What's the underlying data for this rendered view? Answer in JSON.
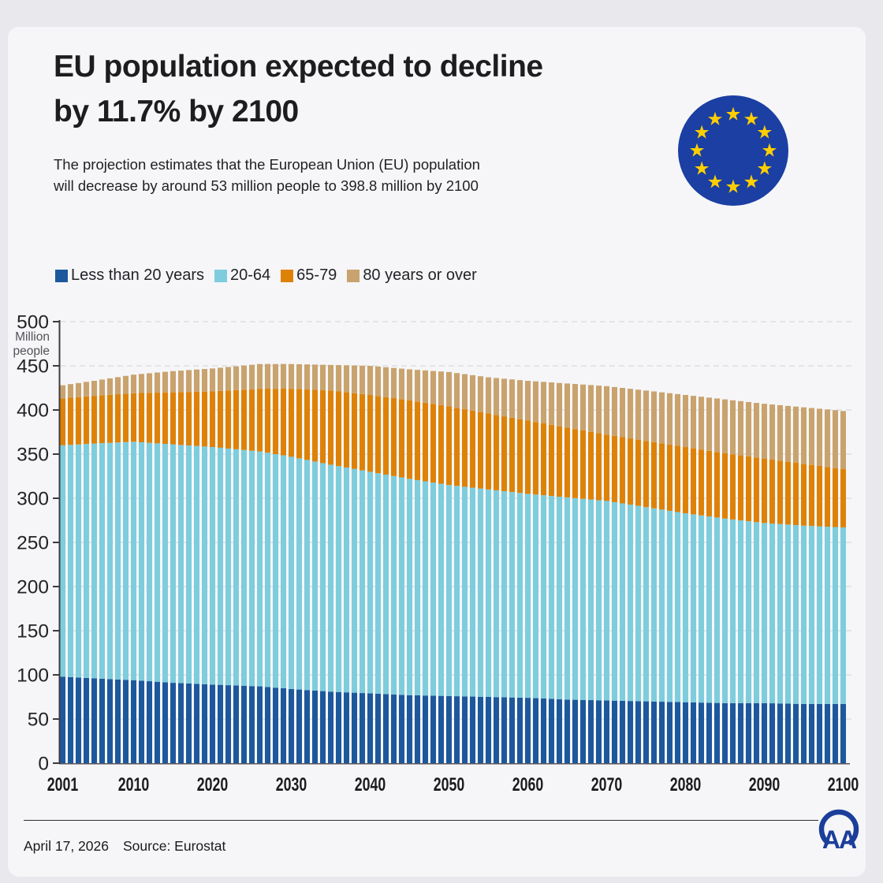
{
  "header": {
    "title_lines": [
      "EU population expected to decline",
      "by 11.7% by 2100"
    ],
    "subtitle": "The projection estimates that the European Union (EU) population will decrease by around 53 million people to 398.8 million by 2100"
  },
  "footer": {
    "date": "April 17, 2026",
    "source": "Source: Eurostat"
  },
  "branding": {
    "eu_flag_blue": "#1b3fa2",
    "eu_star_gold": "#ffcf00",
    "aa_logo_blue": "#1c3e9b"
  },
  "chart_data": {
    "type": "bar",
    "stacked": true,
    "title": "EU population by age group, 2001-2100",
    "ylabel": "Million people",
    "ylim": [
      0,
      500
    ],
    "y_ticks": [
      0,
      50,
      100,
      150,
      200,
      250,
      300,
      350,
      400,
      450,
      500
    ],
    "x_ticks": [
      "2001",
      "2010",
      "2020",
      "2030",
      "2040",
      "2050",
      "2060",
      "2070",
      "2080",
      "2090",
      "2100"
    ],
    "start_year": 2001,
    "end_year": 2100,
    "grid": "dashed-horizontal",
    "legend_position": "top",
    "series": [
      {
        "name": "Less than 20 years",
        "color": "#1d589d",
        "values": [
          98,
          97.5,
          97,
          96.5,
          96,
          95.6,
          95.2,
          94.8,
          94.4,
          94,
          93.4,
          92.8,
          92.2,
          91.6,
          91,
          90.6,
          90.2,
          89.8,
          89.4,
          89,
          88.7,
          88.3,
          88,
          87.7,
          87.3,
          87,
          86.3,
          85.5,
          84.8,
          84,
          83.4,
          82.8,
          82.2,
          81.6,
          81,
          80.6,
          80.2,
          79.8,
          79.4,
          79,
          78.6,
          78.2,
          77.8,
          77.4,
          77,
          76.8,
          76.6,
          76.4,
          76.2,
          76,
          75.8,
          75.6,
          75.4,
          75.2,
          75,
          74.8,
          74.6,
          74.4,
          74.2,
          74,
          73.6,
          73.2,
          72.8,
          72.4,
          72,
          71.8,
          71.6,
          71.4,
          71.2,
          71,
          70.8,
          70.6,
          70.4,
          70.2,
          70,
          69.8,
          69.6,
          69.4,
          69.2,
          69,
          68.8,
          68.6,
          68.4,
          68.2,
          68,
          68,
          68,
          68,
          68,
          68,
          67.8,
          67.6,
          67.4,
          67.2,
          67,
          67,
          67,
          67,
          67,
          67
        ]
      },
      {
        "name": "20-64",
        "color": "#7ecddd",
        "values": [
          262,
          263,
          264,
          265,
          266,
          266.8,
          267.6,
          268.4,
          269.2,
          270,
          270,
          270,
          270,
          270,
          270,
          269.8,
          269.6,
          269.4,
          269.2,
          269,
          268.5,
          268,
          267.5,
          267,
          266.5,
          266,
          265.3,
          264.5,
          263.8,
          263,
          261.8,
          260.6,
          259.4,
          258.2,
          257,
          255.8,
          254.6,
          253.4,
          252.2,
          251,
          249.8,
          248.6,
          247.4,
          246.2,
          245,
          243.8,
          242.6,
          241.4,
          240.2,
          239,
          238.2,
          237.4,
          236.6,
          235.8,
          235,
          234.2,
          233.4,
          232.6,
          231.8,
          231,
          230.6,
          230.2,
          229.8,
          229.4,
          229,
          228.4,
          227.8,
          227.2,
          226.6,
          226,
          224.8,
          223.6,
          222.4,
          221.2,
          220,
          218.8,
          217.6,
          216.4,
          215.2,
          214,
          213,
          212,
          211,
          210,
          209,
          208,
          207,
          206,
          205,
          204,
          203.6,
          203.2,
          202.8,
          202.4,
          202,
          201.6,
          201.2,
          200.8,
          200.4,
          200
        ]
      },
      {
        "name": "65-79",
        "color": "#de8207",
        "values": [
          53,
          53.3,
          53.5,
          53.8,
          54,
          54.2,
          54.4,
          54.6,
          54.8,
          55,
          55.8,
          56.6,
          57.4,
          58.2,
          59,
          59.8,
          60.6,
          61.4,
          62.2,
          63,
          64.3,
          65.7,
          67,
          68.3,
          69.7,
          71,
          72.5,
          74,
          75.5,
          77,
          78.4,
          79.8,
          81.2,
          82.6,
          84,
          84.6,
          85.2,
          85.8,
          86.4,
          87,
          87.4,
          87.8,
          88.2,
          88.6,
          89,
          89,
          89,
          89,
          89,
          89,
          88.4,
          87.8,
          87.2,
          86.6,
          86,
          85.4,
          84.8,
          84.2,
          83.6,
          83,
          82.2,
          81.4,
          80.6,
          79.8,
          79,
          78.2,
          77.4,
          76.6,
          75.8,
          75,
          75,
          75,
          75,
          75,
          75,
          75,
          75,
          75,
          75,
          75,
          74.8,
          74.6,
          74.4,
          74.2,
          74,
          73.8,
          73.6,
          73.4,
          73.2,
          73,
          72.4,
          71.8,
          71.2,
          70.6,
          70,
          69.2,
          68.4,
          67.6,
          66.8,
          66
        ]
      },
      {
        "name": "80 years or over",
        "color": "#c9a36e",
        "values": [
          15,
          15.5,
          16,
          16.5,
          17,
          17.8,
          18.6,
          19.4,
          20.2,
          21,
          21.6,
          22.2,
          22.8,
          23.4,
          24,
          24.4,
          24.8,
          25.2,
          25.6,
          26,
          26.3,
          26.7,
          27,
          27.3,
          27.7,
          28,
          28,
          28,
          28,
          28,
          28.2,
          28.4,
          28.6,
          28.8,
          29,
          29.8,
          30.6,
          31.4,
          32.2,
          33,
          33.4,
          33.8,
          34.2,
          34.6,
          35,
          35.8,
          36.6,
          37.4,
          38.2,
          39,
          39.4,
          39.8,
          40.2,
          40.6,
          41,
          41.8,
          42.6,
          43.4,
          44.2,
          45,
          46,
          47,
          48,
          49,
          50,
          51,
          52,
          53,
          54,
          55,
          55.4,
          55.8,
          56.2,
          56.6,
          57,
          57.4,
          57.8,
          58.2,
          58.6,
          59,
          59.4,
          59.8,
          60.2,
          60.6,
          61,
          61.2,
          61.4,
          61.6,
          61.8,
          62,
          62.4,
          62.8,
          63.2,
          63.6,
          64,
          64.4,
          64.8,
          65.2,
          65.6,
          65.8
        ]
      }
    ]
  }
}
